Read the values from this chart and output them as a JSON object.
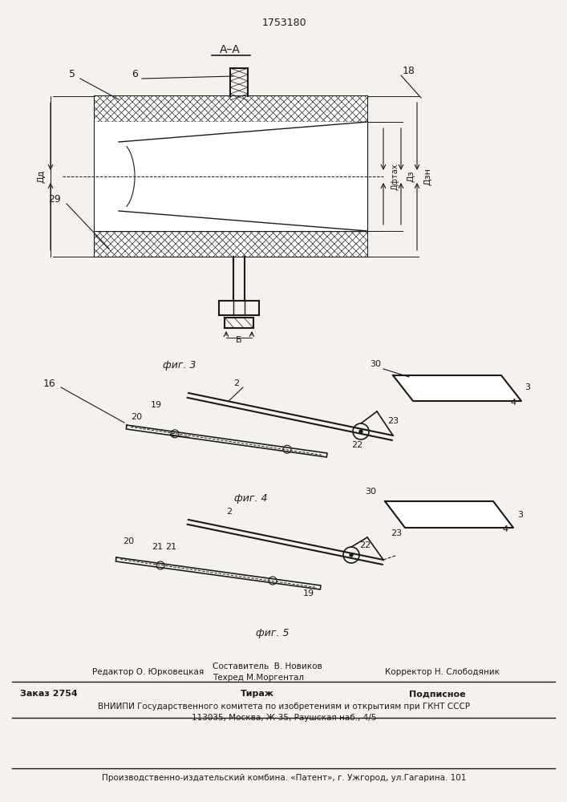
{
  "patent_number": "1753180",
  "bg_color": "#f5f2ee",
  "line_color": "#1a1a1a",
  "section_label": "А–А",
  "fig3_label": "фиг. 3",
  "fig4_label": "фиг. 4",
  "fig5_label": "фиг. 5",
  "footer_left": "Редактор О. Юрковецкая",
  "footer_line1": "Составитель  В. Новиков",
  "footer_line2": "Техред М.Моргентал",
  "footer_line3": "Корректор Н. Слободяник",
  "footer_order": "Заказ 2754",
  "footer_tirazh": "Тираж",
  "footer_podpis": "Подписное",
  "footer_vniiipi": "ВНИИПИ Государственного комитета по изобретениям и открытиям при ГКНТ СССР",
  "footer_address": "113035, Москва, Ж-35, Раушская наб., 4/5",
  "footer_zavod": "Производственно-издательский комбина. «Патент», г. Ужгород, ул.Гагарина. 101"
}
